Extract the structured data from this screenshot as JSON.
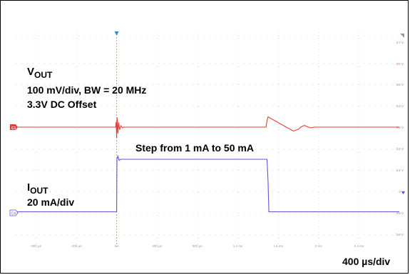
{
  "chart_data": {
    "type": "line",
    "x_unit": "µs",
    "xlim": [
      -1000,
      2800
    ],
    "x_tick_labels": [
      "-800 µs",
      "-400 µs",
      "0 s",
      "400 µs",
      "800 µs",
      "1.2 ms",
      "1.6 ms",
      "2 ms",
      "2.4 ms"
    ],
    "x_tick_values": [
      -800,
      -400,
      0,
      400,
      800,
      1200,
      1600,
      2000,
      2400
    ],
    "y_tick_labels": [
      "3.7 V",
      "3.6 V",
      "3.5 V",
      "3.4 V",
      "3.3 V",
      "3.2 V",
      "3.1 V",
      "3 V",
      "2.9 V",
      "2.8 V"
    ],
    "timebase": "400 µs/div",
    "vout": {
      "name": "V",
      "name_sub": "OUT",
      "line1": "100 mV/div, BW = 20 MHz",
      "line2": "3.3V DC Offset",
      "color": "#e0403a",
      "unit": "mV",
      "points": [
        [
          -1000,
          0
        ],
        [
          -10,
          0
        ],
        [
          -5,
          25
        ],
        [
          0,
          -50
        ],
        [
          5,
          45
        ],
        [
          12,
          -30
        ],
        [
          20,
          22
        ],
        [
          30,
          -12
        ],
        [
          42,
          7
        ],
        [
          55,
          -3
        ],
        [
          70,
          0
        ],
        [
          1480,
          0
        ],
        [
          1490,
          30
        ],
        [
          1500,
          48
        ],
        [
          1750,
          -18
        ],
        [
          1800,
          -10
        ],
        [
          1830,
          2
        ],
        [
          1860,
          8
        ],
        [
          1890,
          2
        ],
        [
          1920,
          -3
        ],
        [
          1960,
          0
        ],
        [
          2800,
          0
        ]
      ]
    },
    "iout": {
      "name": "I",
      "name_sub": "OUT",
      "line1": "20 mA/div",
      "color": "#6a4fd8",
      "unit": "mA",
      "points": [
        [
          -1000,
          1
        ],
        [
          0,
          1
        ],
        [
          3,
          50
        ],
        [
          12,
          53
        ],
        [
          25,
          49
        ],
        [
          40,
          50
        ],
        [
          1490,
          50
        ],
        [
          1500,
          30
        ],
        [
          1508,
          1
        ],
        [
          2800,
          1
        ]
      ]
    },
    "step_label": "Step from 1 mA to 50 mA",
    "markers": {
      "trigger": "T",
      "ch_vout": "C1",
      "ch_iout": "C4"
    }
  }
}
